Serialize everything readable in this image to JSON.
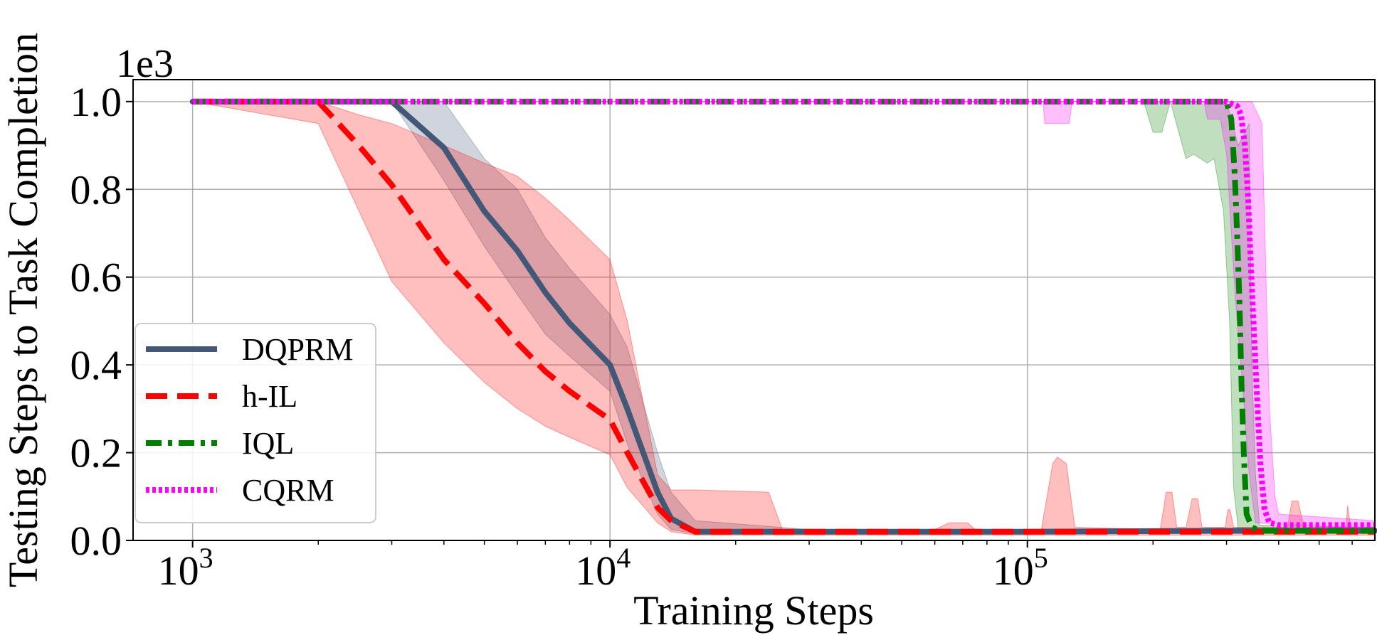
{
  "chart_data": {
    "type": "line",
    "xlabel": "Training Steps",
    "ylabel": "Testing Steps to Task Completion",
    "xscale": "log",
    "xlim": [
      720,
      680000
    ],
    "ylim": [
      0,
      1050
    ],
    "y_multiplier_label": "1e3",
    "grid": true,
    "legend_position": "center-left",
    "x_ticks": [
      {
        "value": 1000,
        "base": "10",
        "exp": "3"
      },
      {
        "value": 10000,
        "base": "10",
        "exp": "4"
      },
      {
        "value": 100000,
        "base": "10",
        "exp": "5"
      }
    ],
    "y_ticks": [
      {
        "value": 0,
        "label": "0.0"
      },
      {
        "value": 200,
        "label": "0.2"
      },
      {
        "value": 400,
        "label": "0.4"
      },
      {
        "value": 600,
        "label": "0.6"
      },
      {
        "value": 800,
        "label": "0.8"
      },
      {
        "value": 1000,
        "label": "1.0"
      }
    ],
    "series": [
      {
        "name": "DQPRM",
        "color": "#435877",
        "dash": "solid",
        "points": [
          [
            1000,
            1000
          ],
          [
            2000,
            1000
          ],
          [
            3000,
            1000
          ],
          [
            4000,
            895
          ],
          [
            5000,
            750
          ],
          [
            6000,
            660
          ],
          [
            7000,
            565
          ],
          [
            8000,
            495
          ],
          [
            10000,
            400
          ],
          [
            11000,
            300
          ],
          [
            13000,
            110
          ],
          [
            14000,
            50
          ],
          [
            16000,
            20
          ],
          [
            30000,
            20
          ],
          [
            100000,
            20
          ],
          [
            300000,
            22
          ],
          [
            680000,
            22
          ]
        ],
        "band_upper": [
          [
            1000,
            1000
          ],
          [
            2000,
            1000
          ],
          [
            3000,
            1000
          ],
          [
            4000,
            1000
          ],
          [
            5000,
            870
          ],
          [
            6000,
            800
          ],
          [
            7000,
            690
          ],
          [
            8000,
            620
          ],
          [
            10000,
            515
          ],
          [
            11000,
            440
          ],
          [
            13000,
            200
          ],
          [
            14000,
            110
          ],
          [
            16000,
            45
          ],
          [
            30000,
            25
          ],
          [
            100000,
            25
          ],
          [
            300000,
            28
          ],
          [
            680000,
            28
          ]
        ],
        "band_lower": [
          [
            1000,
            1000
          ],
          [
            2000,
            1000
          ],
          [
            3000,
            1000
          ],
          [
            4000,
            820
          ],
          [
            5000,
            670
          ],
          [
            6000,
            560
          ],
          [
            7000,
            470
          ],
          [
            8000,
            420
          ],
          [
            10000,
            340
          ],
          [
            11000,
            220
          ],
          [
            13000,
            60
          ],
          [
            14000,
            25
          ],
          [
            16000,
            15
          ],
          [
            30000,
            15
          ],
          [
            100000,
            15
          ],
          [
            300000,
            16
          ],
          [
            680000,
            16
          ]
        ]
      },
      {
        "name": "h-IL",
        "color": "#ff0000",
        "dash": "dashed",
        "points": [
          [
            1000,
            1000
          ],
          [
            2000,
            1000
          ],
          [
            2500,
            900
          ],
          [
            3000,
            810
          ],
          [
            4000,
            640
          ],
          [
            5000,
            540
          ],
          [
            6000,
            450
          ],
          [
            7000,
            385
          ],
          [
            8000,
            340
          ],
          [
            10000,
            275
          ],
          [
            11000,
            200
          ],
          [
            13000,
            75
          ],
          [
            14000,
            45
          ],
          [
            16000,
            20
          ],
          [
            30000,
            20
          ],
          [
            100000,
            20
          ],
          [
            300000,
            20
          ],
          [
            680000,
            20
          ]
        ],
        "band_upper": [
          [
            1000,
            1000
          ],
          [
            2000,
            1000
          ],
          [
            2500,
            970
          ],
          [
            3000,
            950
          ],
          [
            4000,
            900
          ],
          [
            5000,
            860
          ],
          [
            6000,
            830
          ],
          [
            7000,
            780
          ],
          [
            8000,
            730
          ],
          [
            10000,
            640
          ],
          [
            11000,
            500
          ],
          [
            13000,
            150
          ],
          [
            14000,
            115
          ],
          [
            16000,
            115
          ],
          [
            24000,
            110
          ],
          [
            26000,
            20
          ],
          [
            60000,
            25
          ],
          [
            65000,
            40
          ],
          [
            72000,
            40
          ],
          [
            75000,
            25
          ],
          [
            108000,
            25
          ],
          [
            115000,
            175
          ],
          [
            118000,
            190
          ],
          [
            124000,
            175
          ],
          [
            130000,
            30
          ],
          [
            208000,
            25
          ],
          [
            215000,
            110
          ],
          [
            222000,
            110
          ],
          [
            228000,
            30
          ],
          [
            240000,
            30
          ],
          [
            248000,
            95
          ],
          [
            256000,
            95
          ],
          [
            262000,
            30
          ],
          [
            298000,
            30
          ],
          [
            302000,
            70
          ],
          [
            306000,
            70
          ],
          [
            312000,
            30
          ],
          [
            420000,
            30
          ],
          [
            430000,
            90
          ],
          [
            445000,
            90
          ],
          [
            460000,
            30
          ],
          [
            580000,
            30
          ],
          [
            585000,
            80
          ],
          [
            595000,
            30
          ],
          [
            680000,
            30
          ]
        ],
        "band_lower": [
          [
            1000,
            1000
          ],
          [
            2000,
            950
          ],
          [
            3000,
            590
          ],
          [
            4000,
            450
          ],
          [
            5000,
            360
          ],
          [
            6000,
            300
          ],
          [
            7000,
            260
          ],
          [
            8000,
            235
          ],
          [
            10000,
            195
          ],
          [
            11000,
            120
          ],
          [
            13000,
            40
          ],
          [
            14000,
            20
          ],
          [
            16000,
            12
          ],
          [
            30000,
            12
          ],
          [
            100000,
            12
          ],
          [
            680000,
            12
          ]
        ]
      },
      {
        "name": "IQL",
        "color": "#008000",
        "dash": "dashdot",
        "points": [
          [
            1000,
            1000
          ],
          [
            280000,
            1000
          ],
          [
            300000,
            1000
          ],
          [
            308000,
            960
          ],
          [
            314000,
            830
          ],
          [
            318000,
            700
          ],
          [
            322000,
            550
          ],
          [
            326000,
            350
          ],
          [
            330000,
            200
          ],
          [
            335000,
            60
          ],
          [
            345000,
            30
          ],
          [
            360000,
            22
          ],
          [
            680000,
            22
          ]
        ],
        "band_upper": [
          [
            1000,
            1000
          ],
          [
            200000,
            1000
          ],
          [
            215000,
            1000
          ],
          [
            230000,
            1000
          ],
          [
            260000,
            1000
          ],
          [
            280000,
            1000
          ],
          [
            300000,
            1000
          ],
          [
            320000,
            900
          ],
          [
            340000,
            950
          ],
          [
            345000,
            400
          ],
          [
            352000,
            150
          ],
          [
            360000,
            35
          ],
          [
            680000,
            30
          ]
        ],
        "band_lower": [
          [
            1000,
            1000
          ],
          [
            190000,
            1000
          ],
          [
            200000,
            930
          ],
          [
            210000,
            930
          ],
          [
            220000,
            1000
          ],
          [
            240000,
            870
          ],
          [
            250000,
            880
          ],
          [
            270000,
            860
          ],
          [
            280000,
            870
          ],
          [
            295000,
            750
          ],
          [
            305000,
            500
          ],
          [
            312000,
            120
          ],
          [
            320000,
            25
          ],
          [
            680000,
            15
          ]
        ]
      },
      {
        "name": "CQRM",
        "color": "#ff00ff",
        "dash": "dotted",
        "points": [
          [
            1000,
            1000
          ],
          [
            300000,
            1000
          ],
          [
            318000,
            990
          ],
          [
            325000,
            970
          ],
          [
            332000,
            900
          ],
          [
            338000,
            780
          ],
          [
            344000,
            600
          ],
          [
            350000,
            450
          ],
          [
            356000,
            300
          ],
          [
            362000,
            170
          ],
          [
            370000,
            70
          ],
          [
            380000,
            40
          ],
          [
            400000,
            35
          ],
          [
            680000,
            35
          ]
        ],
        "band_upper": [
          [
            1000,
            1000
          ],
          [
            110000,
            1000
          ],
          [
            114000,
            1000
          ],
          [
            118000,
            1000
          ],
          [
            250000,
            1000
          ],
          [
            300000,
            1000
          ],
          [
            320000,
            1000
          ],
          [
            345000,
            1000
          ],
          [
            365000,
            950
          ],
          [
            380000,
            300
          ],
          [
            392000,
            100
          ],
          [
            400000,
            60
          ],
          [
            680000,
            45
          ]
        ],
        "band_lower": [
          [
            1000,
            1000
          ],
          [
            109000,
            1000
          ],
          [
            110000,
            950
          ],
          [
            126000,
            950
          ],
          [
            128000,
            1000
          ],
          [
            265000,
            1000
          ],
          [
            270000,
            960
          ],
          [
            290000,
            960
          ],
          [
            300000,
            880
          ],
          [
            315000,
            550
          ],
          [
            328000,
            350
          ],
          [
            340000,
            150
          ],
          [
            352000,
            40
          ],
          [
            680000,
            25
          ]
        ]
      }
    ]
  }
}
